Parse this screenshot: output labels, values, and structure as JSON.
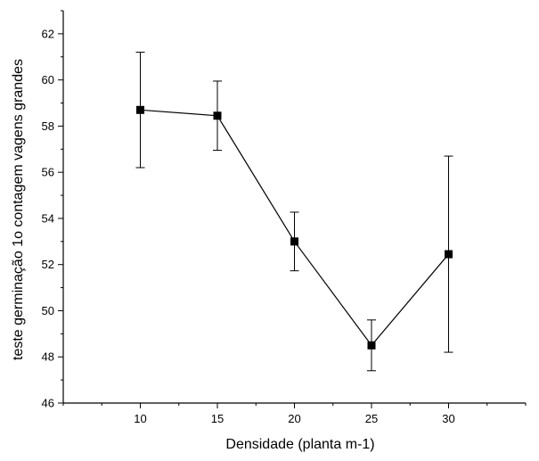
{
  "chart_data": {
    "type": "line",
    "title": "",
    "xlabel": "Densidade (planta m-1)",
    "ylabel": "teste germinação 1o contagem vagens grandes",
    "xlim": [
      5,
      35
    ],
    "ylim": [
      46,
      63
    ],
    "x_ticks": [
      10,
      15,
      20,
      25,
      30
    ],
    "y_ticks": [
      46,
      48,
      50,
      52,
      54,
      56,
      58,
      60,
      62
    ],
    "x_tick_labels": [
      "10",
      "15",
      "20",
      "25",
      "30"
    ],
    "y_tick_labels": [
      "46",
      "48",
      "50",
      "52",
      "54",
      "56",
      "58",
      "60",
      "62"
    ],
    "grid": false,
    "legend": "none",
    "series": [
      {
        "x": [
          10,
          15,
          20,
          25,
          30
        ],
        "y": [
          58.7,
          58.45,
          53.0,
          48.5,
          52.45
        ],
        "error": [
          2.5,
          1.5,
          1.27,
          1.1,
          4.25
        ],
        "marker": "square",
        "color": "#000000"
      }
    ]
  }
}
